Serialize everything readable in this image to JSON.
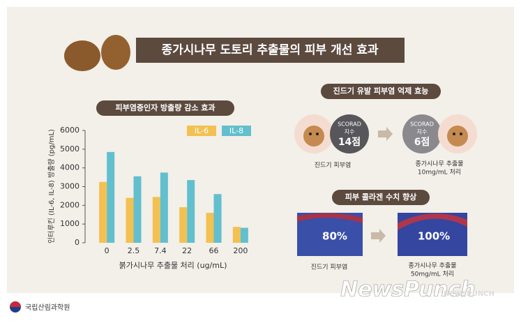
{
  "header": {
    "title": "종가시나무 도토리 추출물의 피부 개선 효과"
  },
  "chart_data": {
    "type": "bar",
    "title": "피부염증인자 방출량 감소 효과",
    "x_label": "붉가시나무 추출물 처리 (ug/mL)",
    "y_label": "인터루킨 (IL-6, IL-8) 방출량 (pg/mL)",
    "categories": [
      "0",
      "2.5",
      "7.4",
      "22",
      "66",
      "200"
    ],
    "series": [
      {
        "name": "IL-6",
        "color": "#f2c152",
        "values": [
          3250,
          2400,
          2450,
          1900,
          1600,
          850
        ]
      },
      {
        "name": "IL-8",
        "color": "#62bfcd",
        "values": [
          4850,
          3550,
          3750,
          3350,
          2600,
          800
        ]
      }
    ],
    "ylim": [
      0,
      6000
    ],
    "yticks": [
      0,
      1000,
      2000,
      3000,
      4000,
      5000,
      6000
    ],
    "grid": false
  },
  "dermatitis": {
    "title": "진드기 유발 피부염 억제 효능",
    "before": {
      "badge": [
        "SCORAD",
        "지수",
        "14점"
      ],
      "caption": [
        "진드기 피부염"
      ]
    },
    "after": {
      "badge": [
        "SCORAD",
        "지수",
        "6점"
      ],
      "caption": [
        "종가시나무 추출물",
        "10mg/mL 처리"
      ]
    }
  },
  "collagen": {
    "title": "피부 콜라겐 수치 향상",
    "before": {
      "value": "80%",
      "caption": [
        "진드기 피부염"
      ]
    },
    "after": {
      "value": "100%",
      "caption": [
        "종가시나무 추출물",
        "50mg/mL 처리"
      ]
    }
  },
  "footer": {
    "org": "국립산림과학원",
    "watermark": "NewsPunch",
    "watermark_small": "NEWSPUNCH"
  }
}
